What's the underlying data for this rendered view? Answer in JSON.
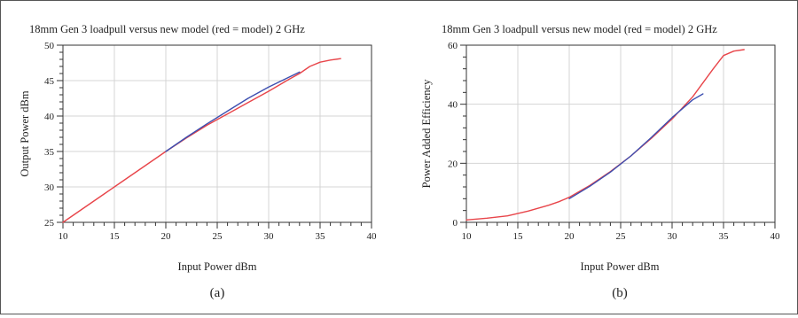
{
  "figure": {
    "panels": [
      {
        "title": "18mm Gen 3 loadpull versus new model (red = model) 2 GHz",
        "xlabel": "Input Power dBm",
        "ylabel": "Output Power dBm",
        "caption": "(a)"
      },
      {
        "title": "18mm Gen 3 loadpull versus new model (red = model) 2 GHz",
        "xlabel": "Input Power dBm",
        "ylabel": "Power Added Efficiency",
        "caption": "(b)"
      }
    ]
  },
  "colors": {
    "model": "#e8454a",
    "measured": "#3d4fb0",
    "axis": "#333333",
    "grid": "#d4d4d4"
  },
  "chart_data": [
    {
      "type": "line",
      "title": "18mm Gen 3 loadpull versus new model (red = model) 2 GHz",
      "xlabel": "Input Power dBm",
      "ylabel": "Output Power dBm",
      "xlim": [
        10,
        40
      ],
      "ylim": [
        25,
        50
      ],
      "xticks": [
        10,
        15,
        20,
        25,
        30,
        35,
        40
      ],
      "yticks": [
        25,
        30,
        35,
        40,
        45,
        50
      ],
      "grid": true,
      "series": [
        {
          "color": "#e8454a",
          "x": [
            10,
            12,
            14,
            16,
            18,
            20,
            22,
            24,
            26,
            28,
            30,
            32,
            33,
            34,
            35,
            36,
            37
          ],
          "y": [
            25.0,
            27.0,
            29.0,
            31.0,
            33.0,
            35.0,
            36.9,
            38.7,
            40.3,
            41.9,
            43.5,
            45.2,
            46.0,
            47.0,
            47.6,
            47.9,
            48.1
          ]
        },
        {
          "color": "#3d4fb0",
          "x": [
            20,
            22,
            24,
            26,
            28,
            30,
            32,
            33
          ],
          "y": [
            35.0,
            37.0,
            38.9,
            40.7,
            42.5,
            44.1,
            45.5,
            46.2
          ]
        }
      ]
    },
    {
      "type": "line",
      "title": "18mm Gen 3 loadpull versus new model (red = model) 2 GHz",
      "xlabel": "Input Power dBm",
      "ylabel": "Power Added Efficiency",
      "xlim": [
        10,
        40
      ],
      "ylim": [
        0,
        60
      ],
      "xticks": [
        10,
        15,
        20,
        25,
        30,
        35,
        40
      ],
      "yticks": [
        0,
        20,
        40,
        60
      ],
      "grid": true,
      "series": [
        {
          "color": "#e8454a",
          "x": [
            10,
            12,
            14,
            16,
            18,
            19,
            20,
            22,
            24,
            26,
            28,
            30,
            32,
            34,
            35,
            36,
            37
          ],
          "y": [
            0.8,
            1.4,
            2.2,
            3.8,
            5.8,
            7.0,
            8.5,
            12.5,
            17.2,
            22.5,
            28.5,
            35.0,
            42.5,
            52.0,
            56.5,
            58.0,
            58.5
          ]
        },
        {
          "color": "#3d4fb0",
          "x": [
            20,
            22,
            24,
            26,
            28,
            30,
            32,
            33
          ],
          "y": [
            8.0,
            12.2,
            17.0,
            22.5,
            28.8,
            35.5,
            41.5,
            43.5
          ]
        }
      ]
    }
  ]
}
